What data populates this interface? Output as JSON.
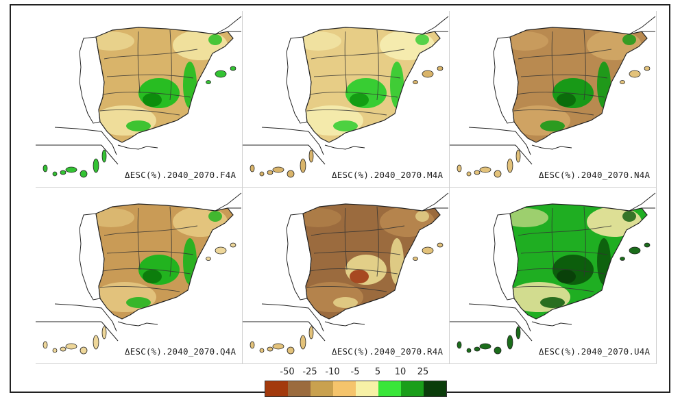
{
  "panels": [
    {
      "caption": "ΔESC(%).2040_2070.F4A",
      "scenario": "F4A",
      "fill": "#d9b46a",
      "mix": "#f2e4a2",
      "patch": "#1fbe1f",
      "patch2": "#0c8a0c",
      "islands": "#33c333"
    },
    {
      "caption": "ΔESC(%).2040_2070.M4A",
      "scenario": "M4A",
      "fill": "#e7cd86",
      "mix": "#f6eeb2",
      "patch": "#2ecc2e",
      "patch2": "#129a12",
      "islands": "#d9b46a"
    },
    {
      "caption": "ΔESC(%).2040_2070.N4A",
      "scenario": "N4A",
      "fill": "#b98a50",
      "mix": "#d2a766",
      "patch": "#0f9a14",
      "patch2": "#0b6a0b",
      "islands": "#e3c27a"
    },
    {
      "caption": "ΔESC(%).2040_2070.Q4A",
      "scenario": "Q4A",
      "fill": "#c99b56",
      "mix": "#e6c982",
      "patch": "#19b41c",
      "patch2": "#0c7a0c",
      "islands": "#eed79a"
    },
    {
      "caption": "ΔESC(%).2040_2070.R4A",
      "scenario": "R4A",
      "fill": "#9b6b3e",
      "mix": "#b8874f",
      "patch": "#e6d58c",
      "patch2": "#a3401b",
      "islands": "#e3c27a"
    },
    {
      "caption": "ΔESC(%).2040_2070.U4A",
      "scenario": "U4A",
      "fill": "#1fae22",
      "mix": "#f2e4a2",
      "patch": "#0c5a0c",
      "patch2": "#0a3f0a",
      "islands": "#1b6d1b"
    }
  ],
  "legend": {
    "ticks": [
      "-50",
      "-25",
      "-10",
      "-5",
      "5",
      "10",
      "25"
    ],
    "colors": [
      "#a33a0d",
      "#9b6b3e",
      "#c9a14f",
      "#f5c46c",
      "#f7f1a6",
      "#39e639",
      "#1a9e1a",
      "#0b3d0b"
    ]
  }
}
